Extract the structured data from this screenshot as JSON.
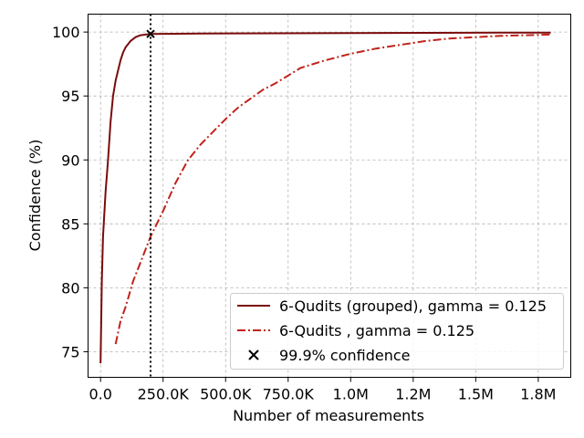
{
  "chart_data": {
    "type": "line",
    "title": "",
    "xlabel": "Number of measurements",
    "ylabel": "Confidence (%)",
    "xlim": [
      -50000,
      1880000
    ],
    "ylim": [
      73,
      101.4
    ],
    "grid": true,
    "legend_position": "bottom-right",
    "x_ticks": [
      {
        "value": 0,
        "label": "0.0"
      },
      {
        "value": 250000,
        "label": "250.0K"
      },
      {
        "value": 500000,
        "label": "500.0K"
      },
      {
        "value": 750000,
        "label": "750.0K"
      },
      {
        "value": 1000000,
        "label": "1.0M"
      },
      {
        "value": 1250000,
        "label": "1.2M"
      },
      {
        "value": 1500000,
        "label": "1.5M"
      },
      {
        "value": 1750000,
        "label": "1.8M"
      }
    ],
    "y_ticks": [
      {
        "value": 75,
        "label": "75"
      },
      {
        "value": 80,
        "label": "80"
      },
      {
        "value": 85,
        "label": "85"
      },
      {
        "value": 90,
        "label": "90"
      },
      {
        "value": 95,
        "label": "95"
      },
      {
        "value": 100,
        "label": "100"
      }
    ],
    "series": [
      {
        "name": "6-Qudits (grouped), gamma = 0.125",
        "color": "#7a0b0b",
        "style": "solid",
        "x": [
          0,
          5000,
          10000,
          20000,
          30000,
          40000,
          50000,
          60000,
          70000,
          80000,
          90000,
          100000,
          120000,
          140000,
          160000,
          180000,
          200000,
          250000,
          400000,
          700000,
          1000000,
          1300000,
          1600000,
          1800000
        ],
        "values": [
          74.1,
          80.5,
          84.0,
          87.5,
          90.0,
          93.0,
          95.0,
          96.2,
          97.0,
          97.8,
          98.4,
          98.8,
          99.3,
          99.6,
          99.75,
          99.8,
          99.85,
          99.86,
          99.88,
          99.9,
          99.92,
          99.94,
          99.95,
          99.96
        ]
      },
      {
        "name": "6-Qudits , gamma = 0.125",
        "color": "#c0231c",
        "style": "dashdot",
        "x": [
          60000,
          80000,
          100000,
          130000,
          170000,
          200000,
          250000,
          300000,
          350000,
          400000,
          450000,
          500000,
          550000,
          600000,
          650000,
          700000,
          750000,
          800000,
          900000,
          1000000,
          1100000,
          1200000,
          1300000,
          1400000,
          1500000,
          1600000,
          1700000,
          1800000
        ],
        "values": [
          75.6,
          77.4,
          78.5,
          80.5,
          82.5,
          84.0,
          86.0,
          88.2,
          90.0,
          91.2,
          92.2,
          93.2,
          94.1,
          94.8,
          95.5,
          96.0,
          96.6,
          97.2,
          97.8,
          98.3,
          98.7,
          99.0,
          99.3,
          99.5,
          99.6,
          99.7,
          99.75,
          99.8
        ]
      }
    ],
    "markers": [
      {
        "name": "99.9% confidence",
        "symbol": "x",
        "color": "#000000",
        "x": 200000,
        "y": 99.85
      }
    ],
    "vline": {
      "x": 200000,
      "style": "dotted",
      "color": "#000000"
    }
  }
}
